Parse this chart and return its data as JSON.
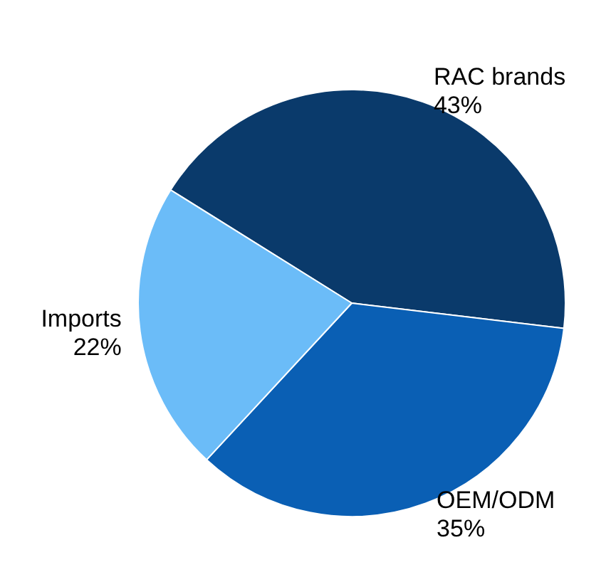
{
  "chart_data": {
    "type": "pie",
    "categories": [
      "RAC brands",
      "OEM/ODM",
      "Imports"
    ],
    "values": [
      43,
      35,
      22
    ],
    "colors": [
      "#0a3a6b",
      "#0a5fb4",
      "#6bbcf8"
    ],
    "value_labels": [
      "43%",
      "35%",
      "22%"
    ],
    "legend": false
  }
}
